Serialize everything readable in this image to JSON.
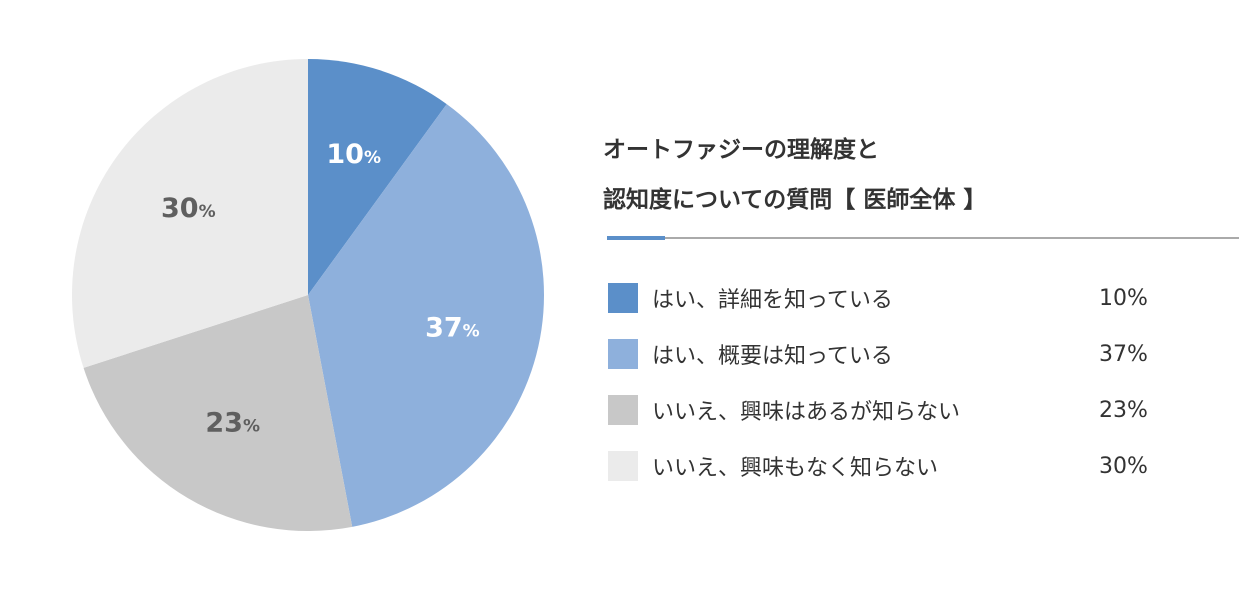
{
  "chart_data": {
    "type": "pie",
    "title_lines": [
      "オートファジーの理解度と",
      "認知度についての質問【 医師全体 】"
    ],
    "slices": [
      {
        "label": "はい、詳細を知っている",
        "value": 10,
        "color": "#5b8fc9",
        "text_color": "#ffffff"
      },
      {
        "label": "はい、概要は知っている",
        "value": 37,
        "color": "#8eb0dc",
        "text_color": "#ffffff"
      },
      {
        "label": "いいえ、興味はあるが知らない",
        "value": 23,
        "color": "#c8c8c8",
        "text_color": "#5f5f5f"
      },
      {
        "label": "いいえ、興味もなく知らない",
        "value": 30,
        "color": "#ebebeb",
        "text_color": "#5f5f5f"
      }
    ],
    "value_suffix": "%",
    "start": "12 o'clock",
    "direction": "clockwise"
  },
  "legend": {
    "items": [
      {
        "label": "はい、詳細を知っている",
        "value": "10%"
      },
      {
        "label": "はい、概要は知っている",
        "value": "37%"
      },
      {
        "label": "いいえ、興味はあるが知らない",
        "value": "23%"
      },
      {
        "label": "いいえ、興味もなく知らない",
        "value": "30%"
      }
    ]
  },
  "accent_color": "#5b8fc9"
}
